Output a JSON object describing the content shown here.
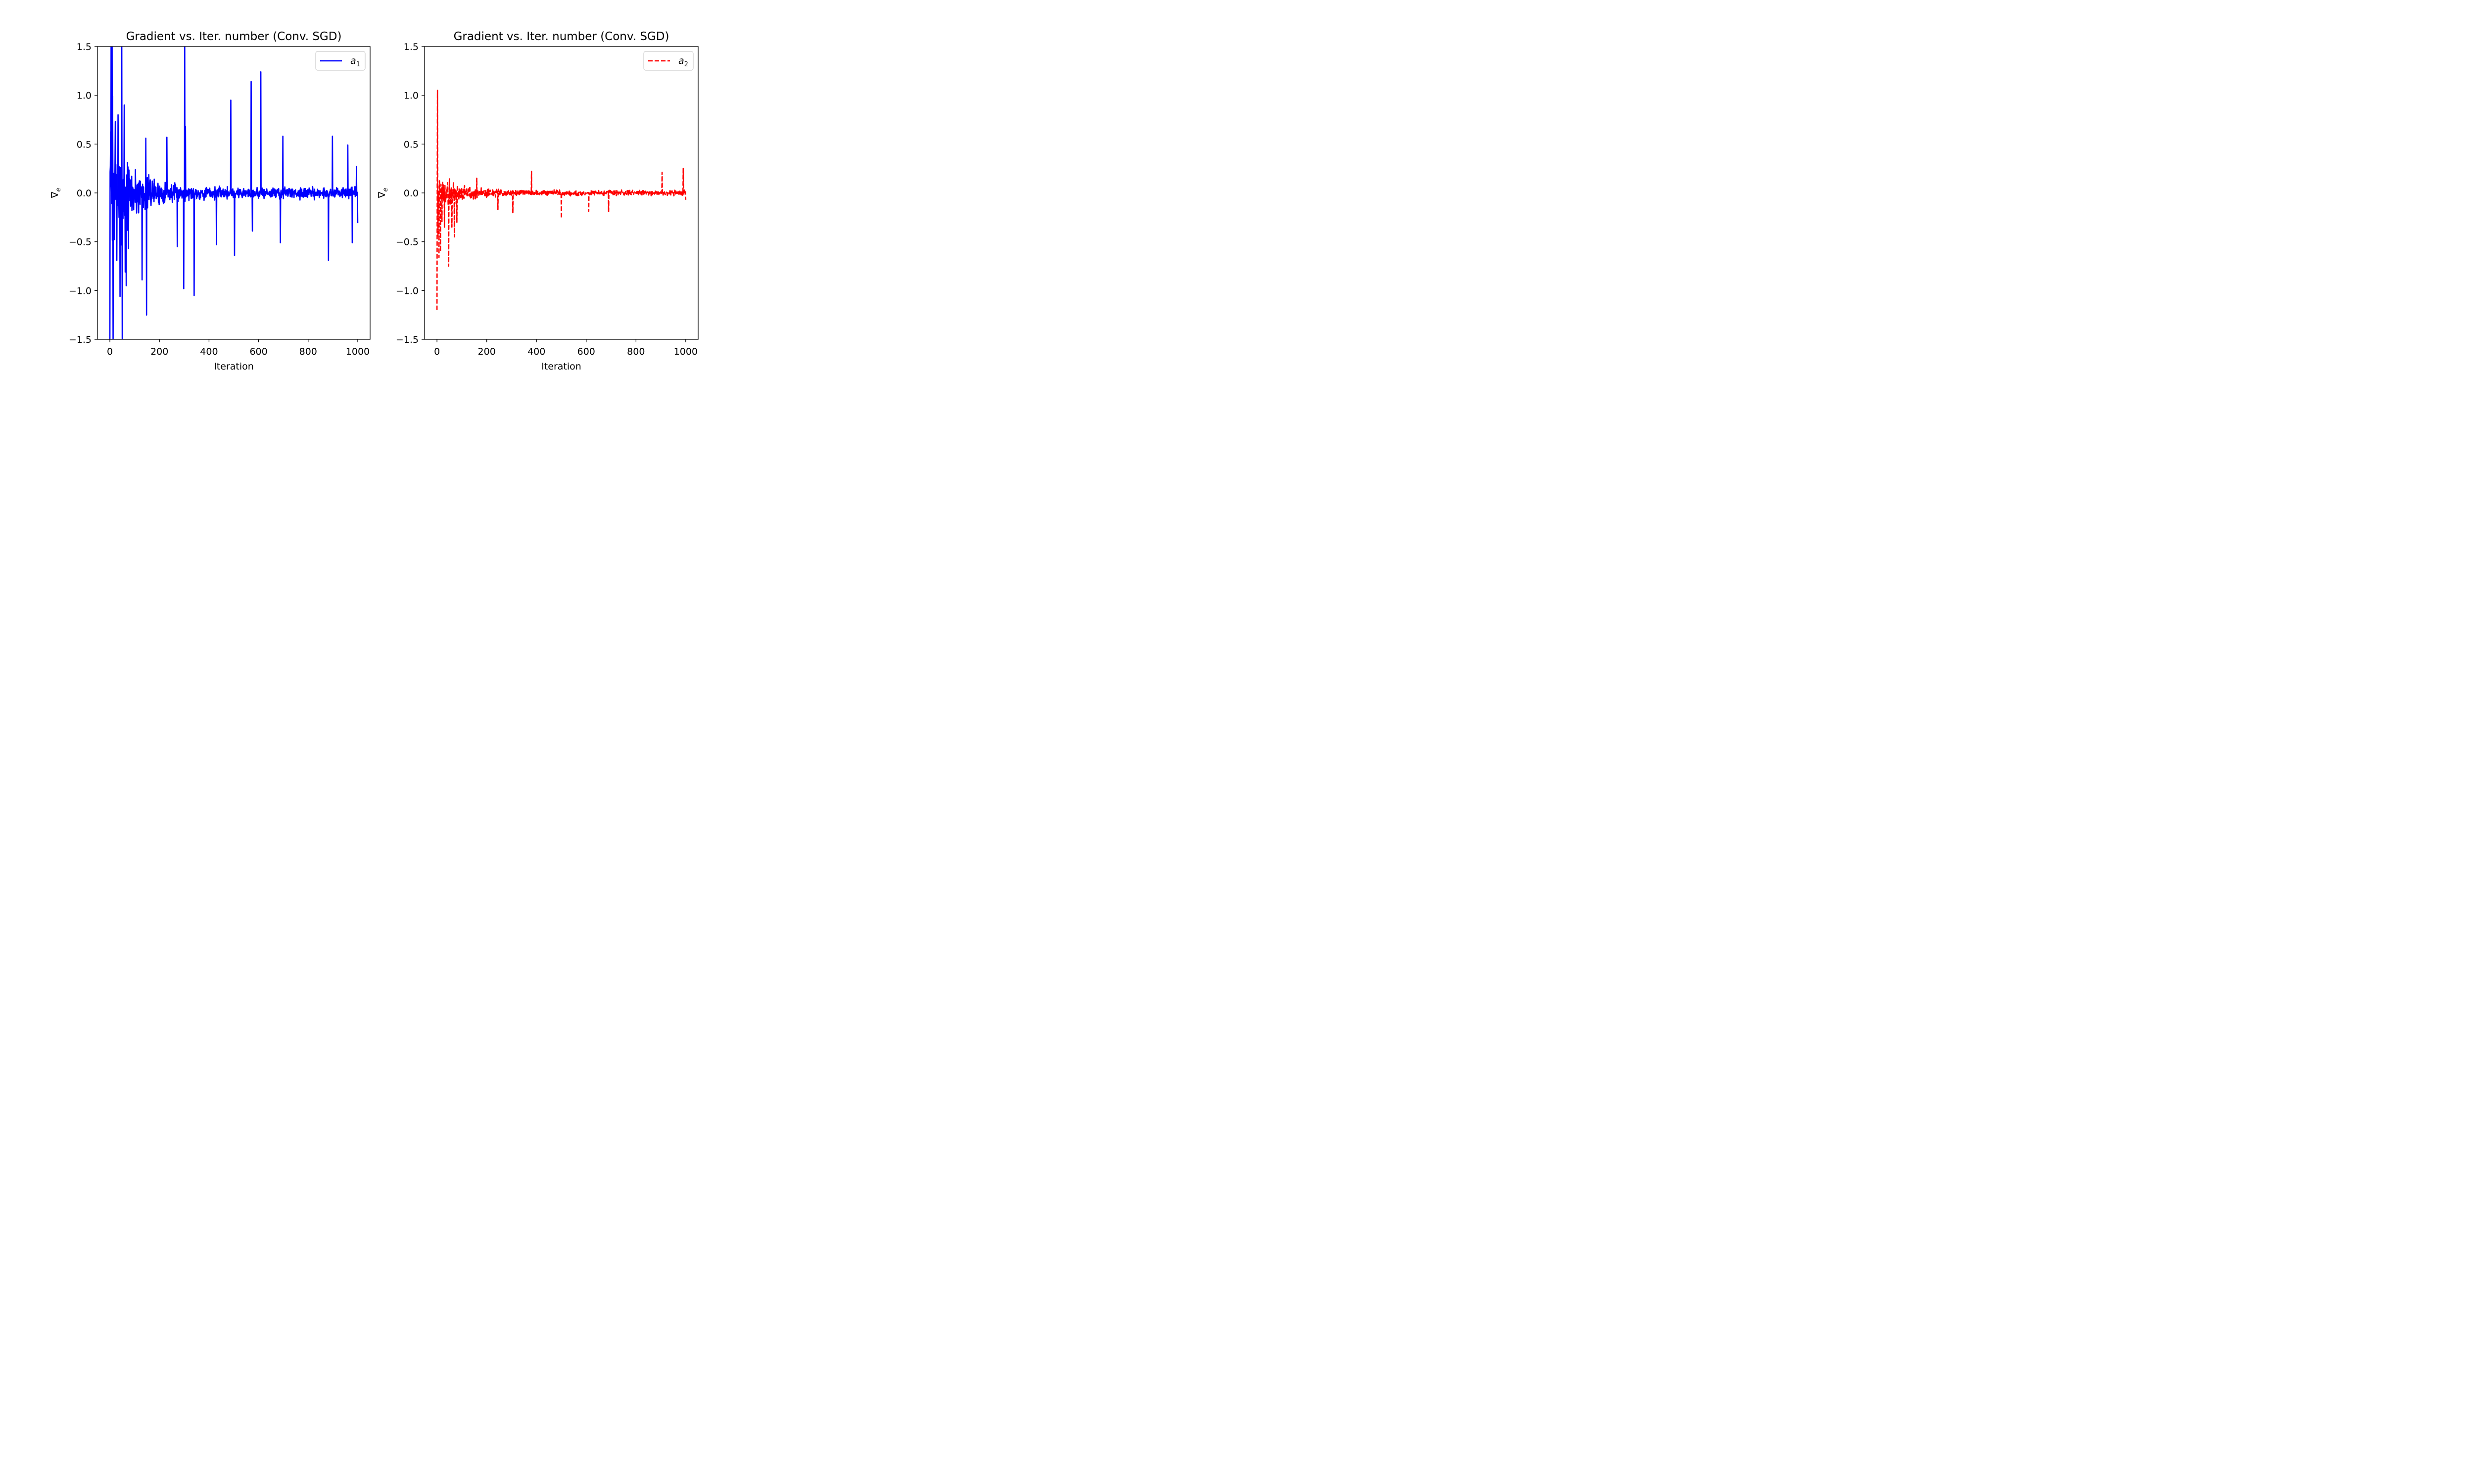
{
  "chart_data": [
    {
      "type": "line",
      "title": "Gradient vs. Iter. number (Conv. SGD)",
      "xlabel": "Iteration",
      "ylabel": "∇e",
      "ylabel_main": "∇",
      "ylabel_sub": "e",
      "xlim": [
        -50,
        1050
      ],
      "ylim": [
        -1.5,
        1.5
      ],
      "xticks": [
        0,
        200,
        400,
        600,
        800,
        1000
      ],
      "xtick_labels": [
        "0",
        "200",
        "400",
        "600",
        "800",
        "1000"
      ],
      "yticks": [
        -1.5,
        -1.0,
        -0.5,
        0.0,
        0.5,
        1.0,
        1.5
      ],
      "ytick_labels": [
        "−1.5",
        "−1.0",
        "−0.5",
        "0.0",
        "0.5",
        "1.0",
        "1.5"
      ],
      "grid": false,
      "legend": "top-right",
      "series": [
        {
          "name": "a1",
          "legend_main": "a",
          "legend_sub": "1",
          "color": "#0000ff",
          "dash": "solid",
          "style": "noisy",
          "seed": 7,
          "base_amp": 0.08,
          "decay_amp": 0.9,
          "decay_iters": 90,
          "spikes": [
            [
              0,
              -1.5
            ],
            [
              2,
              0.27
            ],
            [
              5,
              1.5
            ],
            [
              9,
              1.5
            ],
            [
              11,
              0.99
            ],
            [
              13,
              -1.5
            ],
            [
              22,
              0.73
            ],
            [
              28,
              -0.69
            ],
            [
              33,
              0.8
            ],
            [
              37,
              -0.25
            ],
            [
              41,
              -1.06
            ],
            [
              48,
              1.5
            ],
            [
              50,
              -1.5
            ],
            [
              58,
              0.9
            ],
            [
              62,
              -0.81
            ],
            [
              66,
              -0.95
            ],
            [
              75,
              -0.57
            ],
            [
              130,
              -0.89
            ],
            [
              145,
              0.56
            ],
            [
              148,
              -1.25
            ],
            [
              230,
              0.57
            ],
            [
              272,
              -0.55
            ],
            [
              298,
              -0.98
            ],
            [
              302,
              1.5
            ],
            [
              305,
              0.68
            ],
            [
              340,
              -1.05
            ],
            [
              430,
              -0.53
            ],
            [
              488,
              0.95
            ],
            [
              503,
              -0.64
            ],
            [
              570,
              1.14
            ],
            [
              575,
              -0.39
            ],
            [
              609,
              1.24
            ],
            [
              688,
              -0.51
            ],
            [
              698,
              0.58
            ],
            [
              882,
              -0.69
            ],
            [
              898,
              0.58
            ],
            [
              960,
              0.49
            ],
            [
              978,
              -0.51
            ],
            [
              995,
              0.27
            ],
            [
              1000,
              -0.31
            ]
          ]
        }
      ]
    },
    {
      "type": "line",
      "title": "Gradient vs. Iter. number (Conv. SGD)",
      "xlabel": "Iteration",
      "ylabel": "∇e",
      "ylabel_main": "∇",
      "ylabel_sub": "e",
      "xlim": [
        -50,
        1050
      ],
      "ylim": [
        -1.5,
        1.5
      ],
      "xticks": [
        0,
        200,
        400,
        600,
        800,
        1000
      ],
      "xtick_labels": [
        "0",
        "200",
        "400",
        "600",
        "800",
        "1000"
      ],
      "yticks": [
        -1.5,
        -1.0,
        -0.5,
        0.0,
        0.5,
        1.0,
        1.5
      ],
      "ytick_labels": [
        "−1.5",
        "−1.0",
        "−0.5",
        "0.0",
        "0.5",
        "1.0",
        "1.5"
      ],
      "grid": false,
      "legend": "top-right",
      "series": [
        {
          "name": "a2",
          "legend_main": "a",
          "legend_sub": "2",
          "color": "#ff0000",
          "dash": "dashed",
          "style": "noisy",
          "seed": 19,
          "base_amp": 0.035,
          "decay_amp": 0.28,
          "decay_iters": 90,
          "spikes": [
            [
              0,
              -1.2
            ],
            [
              2,
              1.05
            ],
            [
              4,
              -0.45
            ],
            [
              8,
              -0.66
            ],
            [
              14,
              -0.6
            ],
            [
              20,
              -0.3
            ],
            [
              30,
              -0.35
            ],
            [
              47,
              -0.75
            ],
            [
              60,
              -0.35
            ],
            [
              70,
              -0.45
            ],
            [
              80,
              -0.3
            ],
            [
              160,
              0.15
            ],
            [
              245,
              -0.17
            ],
            [
              305,
              -0.21
            ],
            [
              380,
              0.22
            ],
            [
              500,
              -0.26
            ],
            [
              610,
              -0.19
            ],
            [
              690,
              -0.2
            ],
            [
              905,
              0.21
            ],
            [
              990,
              0.25
            ],
            [
              1000,
              -0.07
            ]
          ]
        }
      ]
    }
  ]
}
